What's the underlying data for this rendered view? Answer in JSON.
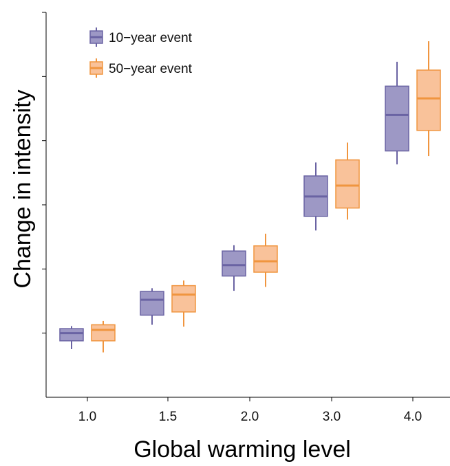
{
  "chart_data": {
    "type": "box",
    "title": "",
    "xlabel": "Global warming level",
    "ylabel": "Change in intensity",
    "categories": [
      "1.0",
      "1.5",
      "2.0",
      "3.0",
      "4.0"
    ],
    "ylim": [
      0,
      6
    ],
    "y_tick_labels_shown": false,
    "grid": false,
    "legend": {
      "position": "top-left"
    },
    "series": [
      {
        "name": "10−year event",
        "color": "#6a63a3",
        "fill": "#9d98c5",
        "boxes": [
          {
            "min": 0.75,
            "q1": 0.88,
            "median": 1.0,
            "q3": 1.07,
            "max": 1.11
          },
          {
            "min": 1.13,
            "q1": 1.28,
            "median": 1.52,
            "q3": 1.65,
            "max": 1.7
          },
          {
            "min": 1.66,
            "q1": 1.89,
            "median": 2.06,
            "q3": 2.28,
            "max": 2.37
          },
          {
            "min": 2.6,
            "q1": 2.82,
            "median": 3.13,
            "q3": 3.45,
            "max": 3.66
          },
          {
            "min": 3.63,
            "q1": 3.84,
            "median": 4.4,
            "q3": 4.85,
            "max": 5.23
          }
        ]
      },
      {
        "name": "50−year event",
        "color": "#f0953f",
        "fill": "#f9c29a",
        "boxes": [
          {
            "min": 0.7,
            "q1": 0.88,
            "median": 1.05,
            "q3": 1.13,
            "max": 1.19
          },
          {
            "min": 1.1,
            "q1": 1.33,
            "median": 1.6,
            "q3": 1.74,
            "max": 1.82
          },
          {
            "min": 1.72,
            "q1": 1.95,
            "median": 2.12,
            "q3": 2.36,
            "max": 2.55
          },
          {
            "min": 2.77,
            "q1": 2.95,
            "median": 3.3,
            "q3": 3.7,
            "max": 3.97
          },
          {
            "min": 3.76,
            "q1": 4.16,
            "median": 4.66,
            "q3": 5.1,
            "max": 5.55
          }
        ]
      }
    ]
  }
}
